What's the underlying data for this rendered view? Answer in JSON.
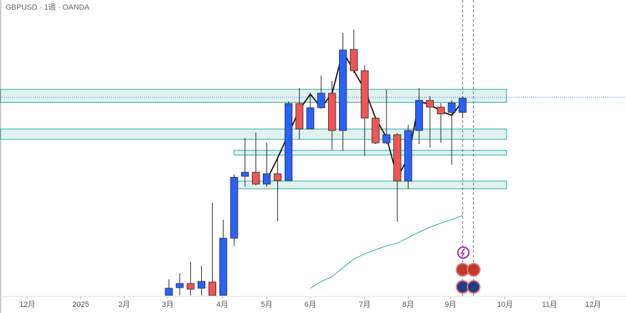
{
  "chart_data": {
    "type": "candlestick",
    "title": "GBPUSD · 1週 · OANDA",
    "categories": [
      null,
      null,
      null,
      null,
      null,
      null,
      null,
      null,
      null,
      null,
      null,
      null,
      null,
      null,
      null,
      null,
      null,
      null,
      null,
      null,
      null,
      null,
      null,
      null,
      null,
      null,
      null,
      null
    ],
    "open": [
      1.2892,
      1.2918,
      1.2932,
      1.2916,
      1.2937,
      1.2892,
      1.3085,
      1.3294,
      1.3308,
      1.3268,
      1.3303,
      1.328,
      1.354,
      1.3454,
      1.3526,
      1.3575,
      1.3449,
      1.3723,
      1.3651,
      1.3491,
      1.3407,
      1.3435,
      1.3278,
      1.3449,
      1.3551,
      1.3528,
      1.351,
      1.351
    ],
    "high": [
      1.2946,
      1.2967,
      1.3006,
      1.2992,
      1.3206,
      1.3148,
      1.3301,
      1.3424,
      1.3442,
      1.3407,
      1.3356,
      1.3547,
      1.3593,
      1.3577,
      1.3635,
      1.3616,
      1.3779,
      1.379,
      1.367,
      1.3496,
      1.3586,
      1.344,
      1.3468,
      1.3593,
      1.3565,
      1.3542,
      1.3551,
      1.3565
    ],
    "low": [
      1.2892,
      1.2892,
      1.2892,
      1.2892,
      1.2892,
      1.2892,
      1.3059,
      1.3259,
      1.3264,
      1.3259,
      1.3143,
      1.328,
      1.3419,
      1.3454,
      1.3526,
      1.3384,
      1.338,
      1.3644,
      1.3363,
      1.3403,
      1.3403,
      1.3141,
      1.3252,
      1.3403,
      1.3391,
      1.3407,
      1.3333,
      1.3491
    ],
    "close": [
      1.2916,
      1.2932,
      1.2913,
      1.2939,
      1.2892,
      1.3085,
      1.3291,
      1.3308,
      1.3268,
      1.3303,
      1.328,
      1.354,
      1.3454,
      1.3526,
      1.3575,
      1.3449,
      1.3721,
      1.3651,
      1.3491,
      1.3407,
      1.3435,
      1.3278,
      1.3449,
      1.3551,
      1.3528,
      1.3505,
      1.3542,
      1.3558
    ],
    "up_color": "#2962ff",
    "down_color": "#f05454",
    "series": [
      {
        "color": "#111111",
        "values": [
          null,
          null,
          null,
          null,
          null,
          null,
          null,
          null,
          null,
          1.3282,
          1.3356,
          1.3438,
          1.3519,
          1.3572,
          1.3526,
          1.3574,
          1.3716,
          1.3651,
          1.3588,
          1.3491,
          1.3426,
          1.3291,
          1.3356,
          1.3547,
          1.3537,
          1.3514,
          1.35,
          1.3547
        ]
      },
      {
        "color": "#26a69a",
        "values": [
          null,
          null,
          null,
          null,
          null,
          null,
          null,
          null,
          null,
          null,
          null,
          null,
          null,
          1.2916,
          1.2939,
          1.2955,
          1.2985,
          1.3015,
          1.3032,
          1.3046,
          1.3059,
          1.3069,
          1.3087,
          1.3106,
          1.3122,
          1.3136,
          1.3148,
          1.3162
        ]
      }
    ],
    "zones": [
      {
        "from": 1.3588,
        "to": 1.3544,
        "x": [
          -15.52,
          31.04
        ]
      },
      {
        "from": 1.3454,
        "to": 1.3419,
        "x": [
          -15.52,
          31.04
        ]
      },
      {
        "from": 1.3382,
        "to": 1.3366,
        "x": [
          6.0,
          31.04
        ]
      },
      {
        "from": 1.3278,
        "to": 1.3252,
        "x": [
          6.0,
          31.04
        ]
      }
    ],
    "zone_color": "#26a69a",
    "price_line": 1.3561,
    "price_line_color": "#2962ff",
    "vlines": [
      27,
      28
    ],
    "xlim": [
      -15.52,
      42.02
    ],
    "ylim": [
      1.2888,
      1.389
    ],
    "xticks": [
      {
        "value": -13.0,
        "label": "12月"
      },
      {
        "value": -8.1,
        "label": "2025"
      },
      {
        "value": -4.1,
        "label": "2月"
      },
      {
        "value": -0.1,
        "label": "3月"
      },
      {
        "value": 4.9,
        "label": "4月"
      },
      {
        "value": 9.0,
        "label": "5月"
      },
      {
        "value": 13.0,
        "label": "6月"
      },
      {
        "value": 18.0,
        "label": "7月"
      },
      {
        "value": 22.0,
        "label": "8月"
      },
      {
        "value": 25.9,
        "label": "9月"
      },
      {
        "value": 30.9,
        "label": "10月"
      },
      {
        "value": 35.0,
        "label": "11月"
      },
      {
        "value": 39.0,
        "label": "12月"
      }
    ]
  }
}
